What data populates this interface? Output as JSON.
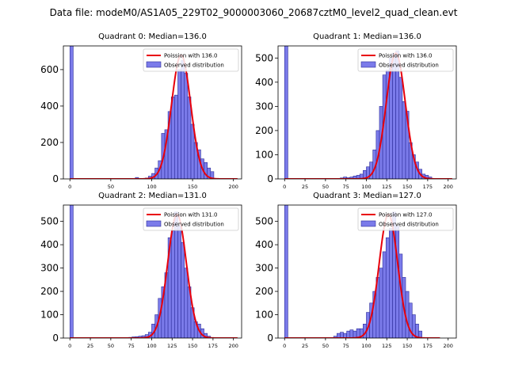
{
  "figure": {
    "suptitle": "Data file: modeM0/AS1A05_229T02_9000003060_20687cztM0_level2_quad_clean.evt"
  },
  "colors": {
    "bar_fill": "#7b7bea",
    "bar_edge": "#2c2c9a",
    "fit_line": "#e8000b",
    "axis": "#000000",
    "legend_edge": "#cccccc"
  },
  "chart_data": [
    {
      "type": "bar",
      "title": "Quadrant 0: Median=136.0",
      "legend": [
        "Poission with 136.0",
        "Observed distribution"
      ],
      "legend_position": "top-right",
      "xlim": [
        -8,
        210
      ],
      "ylim": [
        0,
        730
      ],
      "xticks": [
        0,
        50,
        100,
        150,
        200
      ],
      "yticks": [
        0,
        200,
        400,
        600
      ],
      "bin_width": 4,
      "bins": [
        0,
        80,
        84,
        92,
        96,
        100,
        104,
        108,
        112,
        116,
        120,
        124,
        128,
        132,
        136,
        140,
        144,
        148,
        152,
        156,
        160,
        164,
        168,
        172
      ],
      "counts": [
        730,
        8,
        3,
        5,
        15,
        30,
        60,
        100,
        250,
        270,
        370,
        450,
        460,
        600,
        650,
        580,
        450,
        300,
        200,
        160,
        110,
        90,
        60,
        40
      ],
      "fit": {
        "mu": 136,
        "amplitude": 680,
        "xrange": [
          0,
          205
        ]
      }
    },
    {
      "type": "bar",
      "title": "Quadrant 1: Median=136.0",
      "legend": [
        "Poission with 136.0",
        "Observed distribution"
      ],
      "legend_position": "top-right",
      "xlim": [
        -8,
        210
      ],
      "ylim": [
        0,
        550
      ],
      "xticks": [
        0,
        25,
        50,
        75,
        100,
        125,
        150,
        175,
        200
      ],
      "yticks": [
        0,
        100,
        200,
        300,
        400,
        500
      ],
      "bin_width": 4,
      "bins": [
        0,
        68,
        72,
        76,
        80,
        84,
        88,
        92,
        96,
        100,
        104,
        108,
        112,
        116,
        120,
        124,
        128,
        132,
        136,
        140,
        144,
        148,
        152,
        156,
        160,
        164,
        168,
        172,
        176
      ],
      "counts": [
        550,
        4,
        8,
        5,
        8,
        12,
        15,
        20,
        35,
        50,
        70,
        120,
        200,
        300,
        430,
        450,
        500,
        520,
        530,
        420,
        320,
        280,
        150,
        100,
        70,
        40,
        20,
        15,
        8
      ],
      "fit": {
        "mu": 136,
        "amplitude": 520,
        "xrange": [
          0,
          205
        ]
      }
    },
    {
      "type": "bar",
      "title": "Quadrant 2: Median=131.0",
      "legend": [
        "Poission with 131.0",
        "Observed distribution"
      ],
      "legend_position": "top-right",
      "xlim": [
        -8,
        210
      ],
      "ylim": [
        0,
        570
      ],
      "xticks": [
        0,
        25,
        50,
        75,
        100,
        125,
        150,
        175,
        200
      ],
      "yticks": [
        0,
        100,
        200,
        300,
        400,
        500
      ],
      "bin_width": 4,
      "bins": [
        0,
        72,
        76,
        80,
        84,
        88,
        92,
        96,
        100,
        104,
        108,
        112,
        116,
        120,
        124,
        128,
        132,
        136,
        140,
        144,
        148,
        152,
        156,
        160,
        164,
        168
      ],
      "counts": [
        570,
        3,
        5,
        6,
        8,
        10,
        15,
        25,
        60,
        100,
        170,
        220,
        280,
        430,
        460,
        540,
        480,
        410,
        300,
        220,
        130,
        70,
        60,
        40,
        20,
        8
      ],
      "fit": {
        "mu": 131,
        "amplitude": 530,
        "xrange": [
          0,
          205
        ]
      }
    },
    {
      "type": "bar",
      "title": "Quadrant 3: Median=127.0",
      "legend": [
        "Poission with 127.0",
        "Observed distribution"
      ],
      "legend_position": "top-right",
      "xlim": [
        -8,
        210
      ],
      "ylim": [
        0,
        570
      ],
      "xticks": [
        0,
        25,
        50,
        75,
        100,
        125,
        150,
        175,
        200
      ],
      "yticks": [
        0,
        100,
        200,
        300,
        400,
        500
      ],
      "bin_width": 4,
      "bins": [
        0,
        60,
        64,
        68,
        72,
        76,
        80,
        84,
        88,
        92,
        96,
        100,
        104,
        108,
        112,
        116,
        120,
        124,
        128,
        132,
        136,
        140,
        144,
        148,
        152,
        156,
        160,
        164
      ],
      "counts": [
        570,
        8,
        20,
        25,
        20,
        30,
        35,
        30,
        40,
        40,
        60,
        110,
        150,
        200,
        260,
        300,
        370,
        430,
        470,
        540,
        480,
        360,
        260,
        200,
        150,
        100,
        60,
        30
      ],
      "fit": {
        "mu": 127,
        "amplitude": 530,
        "xrange": [
          0,
          190
        ]
      }
    }
  ]
}
